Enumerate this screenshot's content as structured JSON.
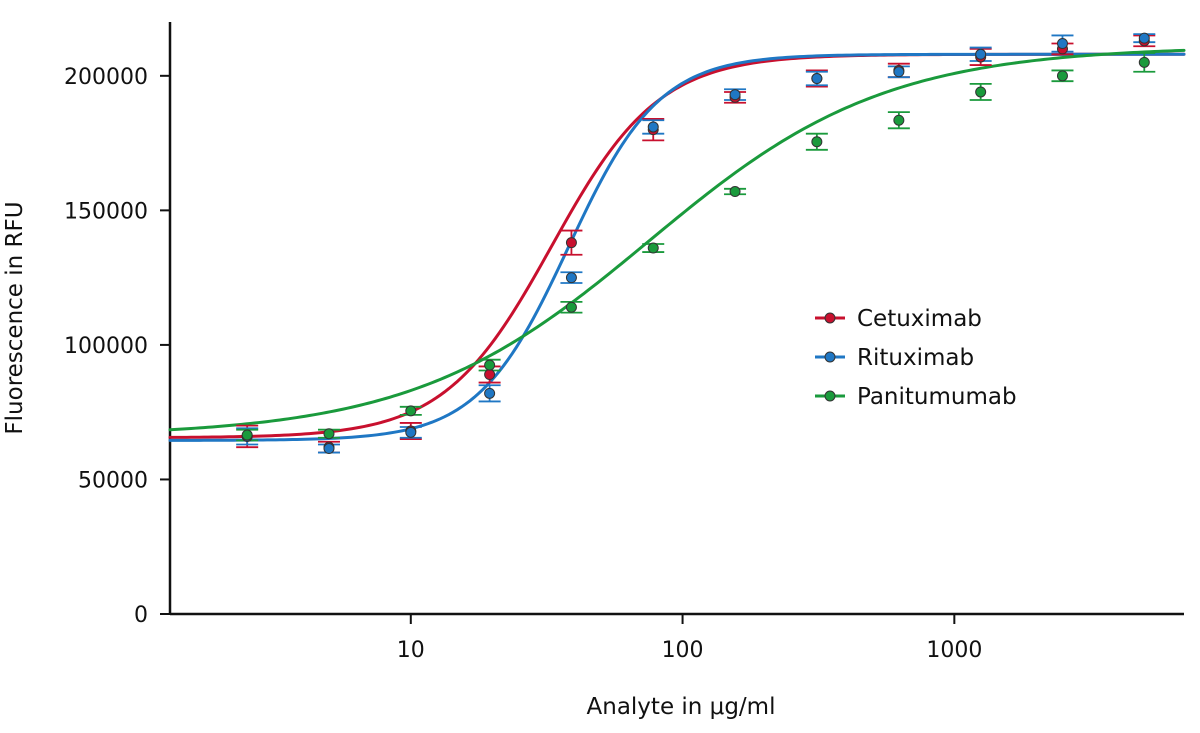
{
  "chart_data": {
    "type": "scatter",
    "xlabel": "Analyte in μg/ml",
    "ylabel": "Fluorescence in RFU",
    "xscale": "log",
    "xlim": [
      1.3,
      7000
    ],
    "ylim": [
      0,
      220000
    ],
    "x_ticks": [
      10,
      100,
      1000
    ],
    "x_tick_labels": [
      "10",
      "100",
      "1000"
    ],
    "y_ticks": [
      0,
      50000,
      100000,
      150000,
      200000
    ],
    "y_tick_labels": [
      "0",
      "50000",
      "100000",
      "150000",
      "200000"
    ],
    "grid": false,
    "legend_position": "center-right",
    "series": [
      {
        "name": "Cetuximab",
        "color": "#c8102e",
        "x": [
          2.5,
          5,
          10,
          19.5,
          39,
          78,
          156,
          312,
          625,
          1250,
          2500,
          5000
        ],
        "y": [
          66000,
          62000,
          68000,
          89000,
          138000,
          180000,
          192000,
          199000,
          202000,
          207000,
          210000,
          213000
        ],
        "err": [
          4000,
          2000,
          3000,
          3000,
          4500,
          4000,
          2000,
          3000,
          2500,
          3000,
          2000,
          2000
        ],
        "fit": {
          "bottom": 65500,
          "top": 208000,
          "ec50": 33,
          "hill": 2.2
        }
      },
      {
        "name": "Rituximab",
        "color": "#1f77c4",
        "x": [
          2.5,
          5,
          10,
          19.5,
          39,
          78,
          156,
          312,
          625,
          1250,
          2500,
          5000
        ],
        "y": [
          66000,
          61500,
          67500,
          82000,
          125000,
          181000,
          193000,
          199000,
          201500,
          208000,
          212000,
          214000
        ],
        "err": [
          3000,
          1500,
          2000,
          3000,
          2000,
          2500,
          2000,
          2500,
          2000,
          2500,
          3000,
          1500
        ],
        "fit": {
          "bottom": 64500,
          "top": 208000,
          "ec50": 38,
          "hill": 2.6
        }
      },
      {
        "name": "Panitumumab",
        "color": "#1a9a3c",
        "x": [
          2.5,
          5,
          10,
          19.5,
          39,
          78,
          156,
          312,
          625,
          1250,
          2500,
          5000
        ],
        "y": [
          66500,
          67000,
          75500,
          92500,
          114000,
          136000,
          157000,
          175500,
          183500,
          194000,
          200000,
          205000
        ],
        "err": [
          2000,
          1500,
          1500,
          2000,
          2000,
          1500,
          1000,
          3000,
          3000,
          3000,
          2000,
          3500
        ],
        "fit": {
          "bottom": 66000,
          "top": 211000,
          "ec50": 75,
          "hill": 1.0
        }
      }
    ]
  }
}
